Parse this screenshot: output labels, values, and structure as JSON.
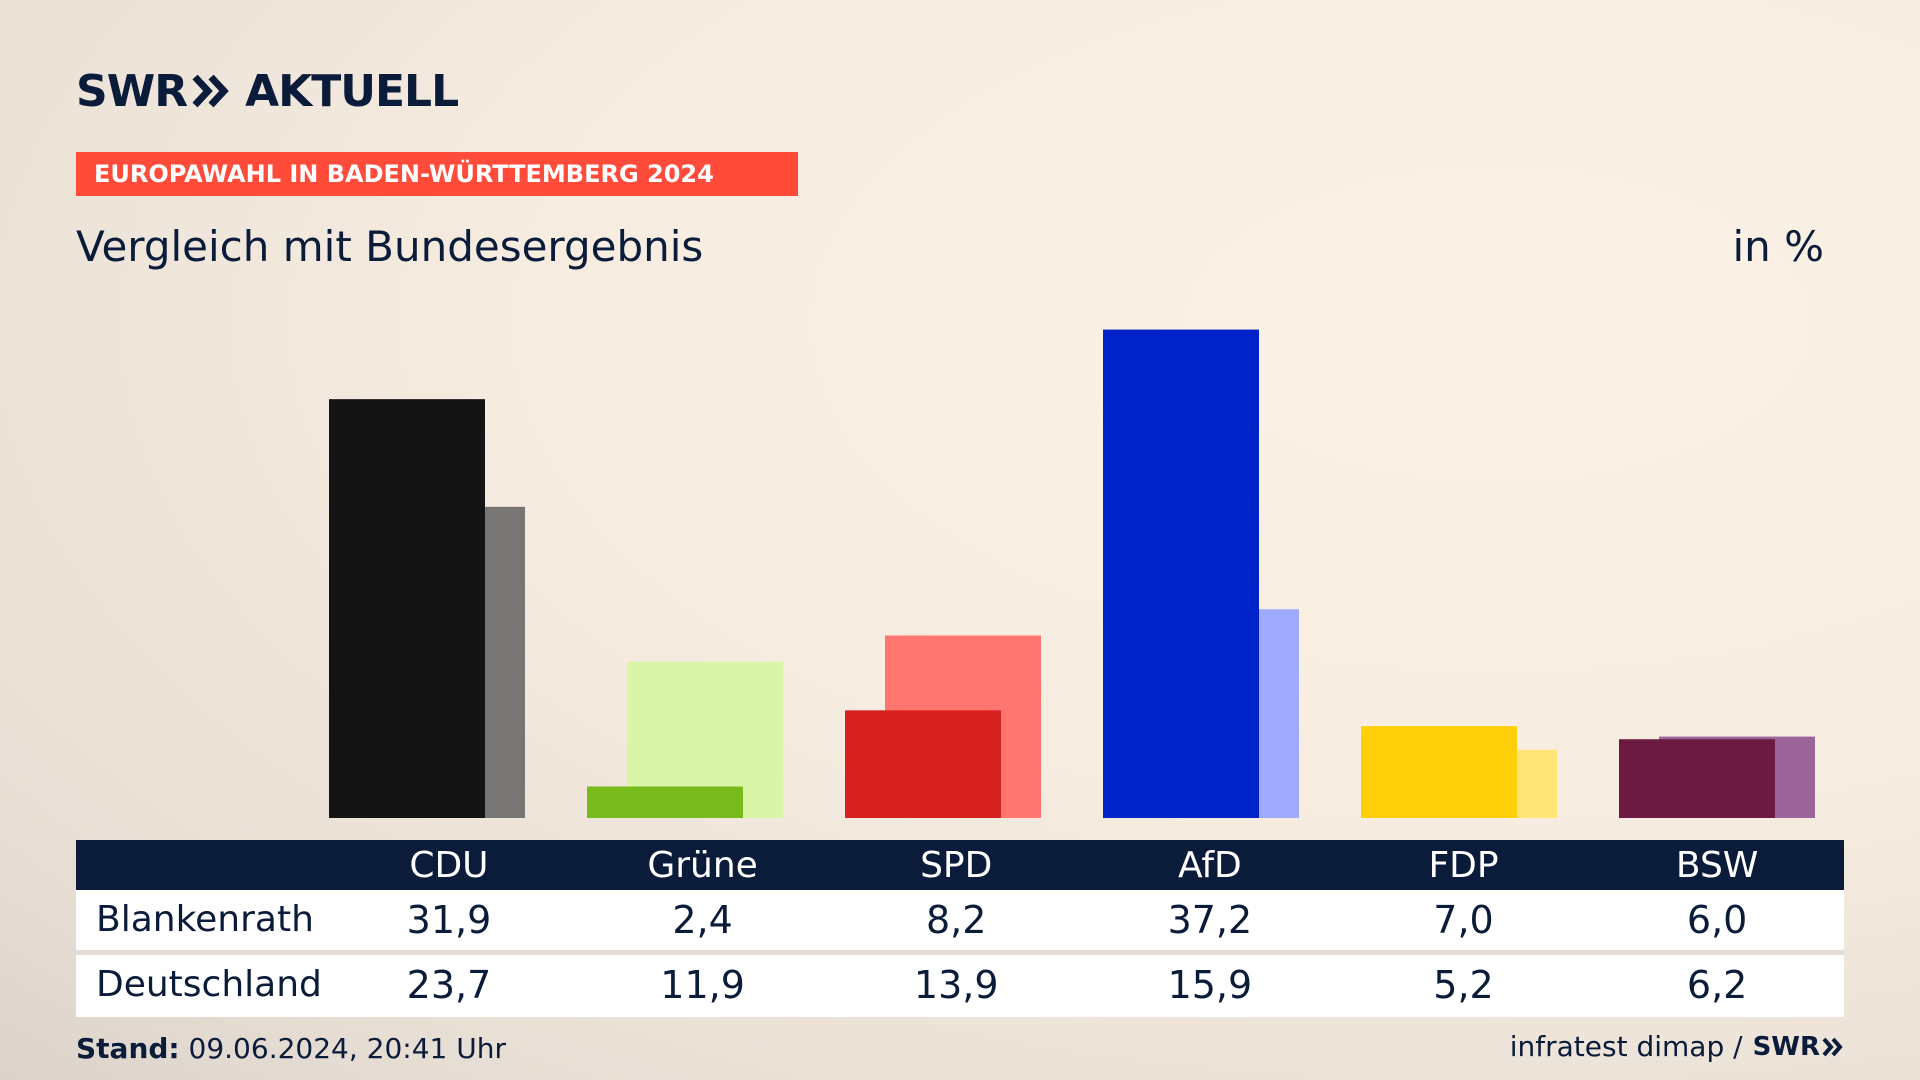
{
  "header": {
    "logo_left": "SWR",
    "logo_right": "AKTUELL",
    "election_label": "EUROPAWAHL IN BADEN-WÜRTTEMBERG 2024",
    "title": "Vergleich mit Bundesergebnis",
    "unit": "in %"
  },
  "chart_data": {
    "type": "bar",
    "categories": [
      "CDU",
      "Grüne",
      "SPD",
      "AfD",
      "FDP",
      "BSW"
    ],
    "series": [
      {
        "name": "Blankenrath",
        "values": [
          31.9,
          2.4,
          8.2,
          37.2,
          7.0,
          6.0
        ],
        "value_labels": [
          "31,9",
          "2,4",
          "8,2",
          "37,2",
          "7,0",
          "6,0"
        ],
        "colors": [
          "#141414",
          "#79bb1c",
          "#d6211f",
          "#0022c9",
          "#ffcf0a",
          "#6b1a41"
        ]
      },
      {
        "name": "Deutschland",
        "values": [
          23.7,
          11.9,
          13.9,
          15.9,
          5.2,
          6.2
        ],
        "value_labels": [
          "23,7",
          "11,9",
          "13,9",
          "15,9",
          "5,2",
          "6,2"
        ],
        "colors": [
          "#787674",
          "#d8f5a8",
          "#ff7670",
          "#9faafd",
          "#ffe477",
          "#9c6599"
        ]
      }
    ],
    "ylim": [
      0,
      40
    ],
    "grid": false,
    "legend": "table-below"
  },
  "footer": {
    "stand_label": "Stand:",
    "stand_value": "09.06.2024, 20:41 Uhr",
    "source": "infratest dimap /",
    "source_logo": "SWR"
  }
}
